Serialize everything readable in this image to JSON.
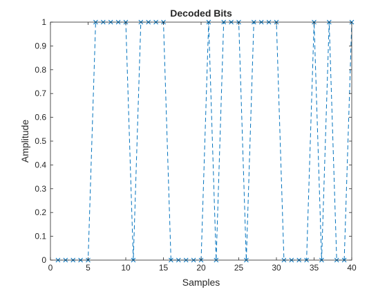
{
  "chart_data": {
    "type": "line",
    "title": "Decoded Bits",
    "xlabel": "Samples",
    "ylabel": "Amplitude",
    "xlim": [
      0,
      40
    ],
    "ylim": [
      0,
      1
    ],
    "xticks": [
      0,
      5,
      10,
      15,
      20,
      25,
      30,
      35,
      40
    ],
    "yticks": [
      0,
      0.1,
      0.2,
      0.3,
      0.4,
      0.5,
      0.6,
      0.7,
      0.8,
      0.9,
      1
    ],
    "grid": false,
    "series": [
      {
        "line_style": "dashed",
        "marker": "x",
        "color": "#0072BD",
        "x": [
          1,
          2,
          3,
          4,
          5,
          6,
          7,
          8,
          9,
          10,
          11,
          12,
          13,
          14,
          15,
          16,
          17,
          18,
          19,
          20,
          21,
          22,
          23,
          24,
          25,
          26,
          27,
          28,
          29,
          30,
          31,
          32,
          33,
          34,
          35,
          36,
          37,
          38,
          39,
          40
        ],
        "y": [
          0,
          0,
          0,
          0,
          0,
          1,
          1,
          1,
          1,
          1,
          0,
          1,
          1,
          1,
          1,
          0,
          0,
          0,
          0,
          0,
          1,
          0,
          1,
          1,
          1,
          0,
          1,
          1,
          1,
          1,
          0,
          0,
          0,
          0,
          1,
          0,
          1,
          0,
          0,
          1
        ]
      }
    ]
  }
}
